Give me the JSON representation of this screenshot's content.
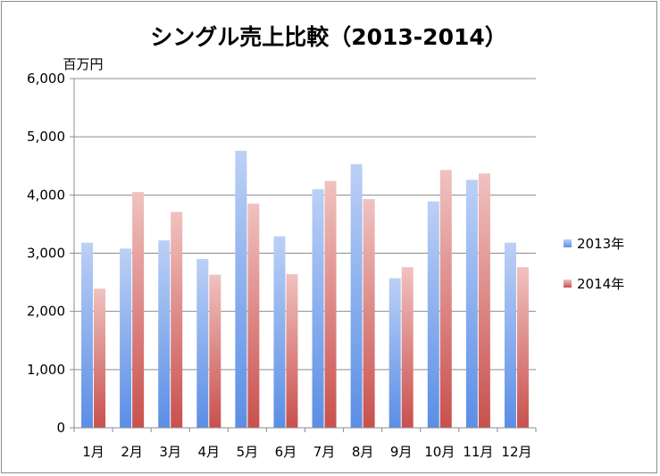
{
  "chart_data": {
    "type": "bar",
    "title": "シングル売上比較（2013-2014）",
    "unit_label": "百万円",
    "categories": [
      "1月",
      "2月",
      "3月",
      "4月",
      "5月",
      "6月",
      "7月",
      "8月",
      "9月",
      "10月",
      "11月",
      "12月"
    ],
    "series": [
      {
        "name": "2013年",
        "values": [
          3180,
          3080,
          3220,
          2900,
          4760,
          3290,
          4100,
          4530,
          2570,
          3890,
          4260,
          3180
        ],
        "color_top": "#bcd0f5",
        "color_bottom": "#5b8ee6"
      },
      {
        "name": "2014年",
        "values": [
          2390,
          4050,
          3710,
          2630,
          3850,
          2640,
          4240,
          3930,
          2760,
          4430,
          4370,
          2760
        ],
        "color_top": "#f0c2c0",
        "color_bottom": "#c9504d"
      }
    ],
    "y_ticks": [
      "0",
      "1,000",
      "2,000",
      "3,000",
      "4,000",
      "5,000",
      "6,000"
    ],
    "ylim": [
      0,
      6000
    ],
    "grid": true,
    "legend_position": "right"
  }
}
